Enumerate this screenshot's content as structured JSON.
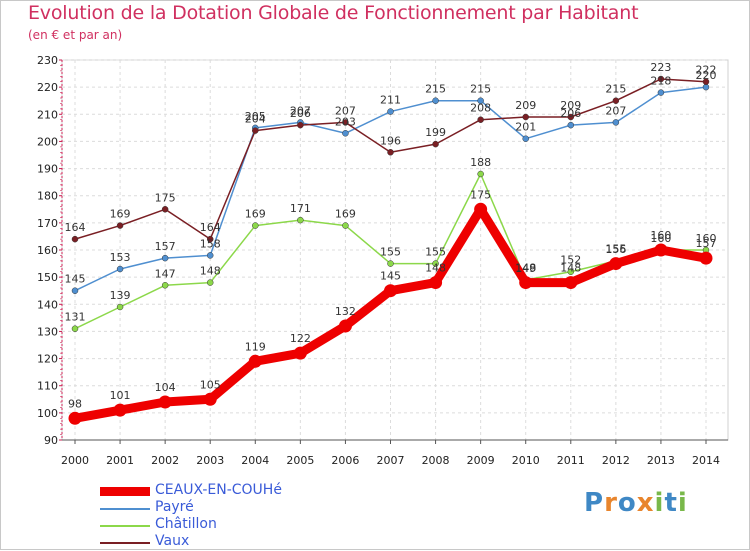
{
  "title": "Evolution de la Dotation Globale de Fonctionnement par Habitant",
  "subtitle": "(en € et par an)",
  "logo_text": "Proxiti",
  "chart_data": {
    "type": "line",
    "x": [
      "2000",
      "2001",
      "2002",
      "2003",
      "2004",
      "2005",
      "2006",
      "2007",
      "2008",
      "2009",
      "2010",
      "2011",
      "2012",
      "2013",
      "2014"
    ],
    "ylim": [
      90,
      230
    ],
    "yticks": [
      90,
      100,
      110,
      120,
      130,
      140,
      150,
      160,
      170,
      180,
      190,
      200,
      210,
      220,
      230
    ],
    "grid": true,
    "legend_position": "bottom-left",
    "series": [
      {
        "name": "CEAUX-EN-COUHé",
        "color": "#ee0000",
        "width": 9,
        "values": [
          98,
          101,
          104,
          105,
          119,
          122,
          132,
          145,
          148,
          175,
          148,
          148,
          155,
          160,
          157
        ]
      },
      {
        "name": "Payré",
        "color": "#4f8fd0",
        "width": 1.5,
        "values": [
          145,
          153,
          157,
          158,
          205,
          207,
          203,
          211,
          215,
          215,
          201,
          206,
          207,
          218,
          220
        ]
      },
      {
        "name": "Châtillon",
        "color": "#8cd84a",
        "width": 1.5,
        "values": [
          131,
          139,
          147,
          148,
          169,
          171,
          169,
          155,
          155,
          188,
          149,
          152,
          156,
          160,
          160
        ]
      },
      {
        "name": "Vaux",
        "color": "#7a1f24",
        "width": 1.5,
        "values": [
          164,
          169,
          175,
          164,
          204,
          206,
          207,
          196,
          199,
          208,
          209,
          209,
          215,
          223,
          222
        ]
      }
    ]
  }
}
